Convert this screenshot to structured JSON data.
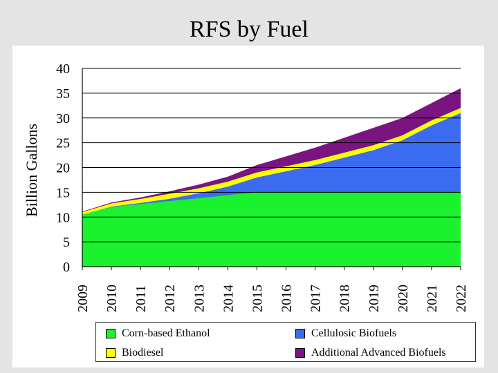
{
  "page": {
    "title": "RFS by Fuel"
  },
  "colors": {
    "corn": "#19f22c",
    "cellulosic": "#3b6cf0",
    "biodiesel": "#ffff00",
    "advanced": "#7a1480",
    "grid": "#000000"
  },
  "chart_data": {
    "type": "area",
    "stacked": true,
    "title": "RFS by Fuel",
    "xlabel": "",
    "ylabel": "Billion Gallons",
    "ylim": [
      0,
      40
    ],
    "yticks": [
      0,
      5,
      10,
      15,
      20,
      25,
      30,
      35,
      40
    ],
    "grid": true,
    "legend_position": "bottom",
    "x": [
      "2009",
      "2010",
      "2011",
      "2012",
      "2013",
      "2014",
      "2015",
      "2016",
      "2017",
      "2018",
      "2019",
      "2020",
      "2021",
      "2022"
    ],
    "series": [
      {
        "name": "Corn-based Ethanol",
        "color_key": "corn",
        "values": [
          10.5,
          12.0,
          12.6,
          13.2,
          13.8,
          14.4,
          15.0,
          15.0,
          15.0,
          15.0,
          15.0,
          15.0,
          15.0,
          15.0
        ]
      },
      {
        "name": "Cellulosic Biofuels",
        "color_key": "cellulosic",
        "values": [
          0,
          0.1,
          0.25,
          0.5,
          1.0,
          1.75,
          3.0,
          4.25,
          5.5,
          7.0,
          8.5,
          10.5,
          13.5,
          16.0
        ]
      },
      {
        "name": "Biodiesel",
        "color_key": "biodiesel",
        "values": [
          0.5,
          0.65,
          0.8,
          1.0,
          1.0,
          1.0,
          1.0,
          1.0,
          1.0,
          1.0,
          1.0,
          1.0,
          1.0,
          1.0
        ]
      },
      {
        "name": "Additional Advanced Biofuels",
        "color_key": "advanced",
        "values": [
          0.1,
          0.2,
          0.3,
          0.5,
          0.75,
          1.0,
          1.5,
          2.0,
          2.5,
          3.0,
          3.5,
          3.5,
          3.5,
          4.0
        ]
      }
    ]
  }
}
